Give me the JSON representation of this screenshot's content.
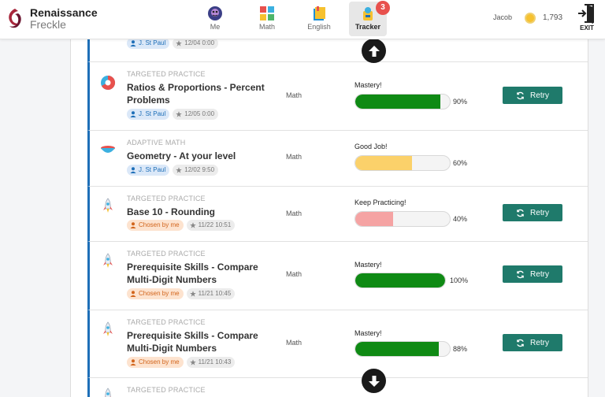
{
  "brand": {
    "line1": "Renaissance",
    "line2": "Freckle"
  },
  "nav": [
    {
      "label": "Me",
      "icon": "avatar-icon"
    },
    {
      "label": "Math",
      "icon": "math-blocks-icon"
    },
    {
      "label": "English",
      "icon": "book-icon"
    },
    {
      "label": "Tracker",
      "icon": "tracker-icon",
      "badge": "3",
      "active": true
    }
  ],
  "user": {
    "name": "Jacob",
    "coins": "1,793"
  },
  "exit_label": "EXIT",
  "partial_row": {
    "chips": [
      "J. St Paul",
      "12/04 0:00"
    ]
  },
  "rows": [
    {
      "type": "TARGETED PRACTICE",
      "title": "Ratios & Proportions - Percent Problems",
      "chip_kind": "teacher",
      "assigner": "J. St Paul",
      "date": "12/05 0:00",
      "subject": "Math",
      "status": "Mastery!",
      "progress": 90,
      "pct_label": "90%",
      "bar_color": "#0f8a14",
      "retry": "Retry",
      "icon": "pie-chart-icon"
    },
    {
      "type": "ADAPTIVE MATH",
      "title": "Geometry - At your level",
      "chip_kind": "teacher",
      "assigner": "J. St Paul",
      "date": "12/02 9:50",
      "subject": "Math",
      "status": "Good Job!",
      "progress": 60,
      "pct_label": "60%",
      "bar_color": "#fbd16a",
      "retry": "",
      "icon": "bowl-icon"
    },
    {
      "type": "TARGETED PRACTICE",
      "title": "Base 10 - Rounding",
      "chip_kind": "self",
      "assigner": "Chosen by me",
      "date": "11/22 10:51",
      "subject": "Math",
      "status": "Keep Practicing!",
      "progress": 40,
      "pct_label": "40%",
      "bar_color": "#f5a3a3",
      "retry": "Retry",
      "icon": "rocket-icon"
    },
    {
      "type": "TARGETED PRACTICE",
      "title": "Prerequisite Skills - Compare Multi-Digit Numbers",
      "chip_kind": "self",
      "assigner": "Chosen by me",
      "date": "11/21 10:45",
      "subject": "Math",
      "status": "Mastery!",
      "progress": 100,
      "pct_label": "100%",
      "bar_color": "#0f8a14",
      "retry": "Retry",
      "icon": "rocket-icon"
    },
    {
      "type": "TARGETED PRACTICE",
      "title": "Prerequisite Skills - Compare Multi-Digit Numbers",
      "chip_kind": "self",
      "assigner": "Chosen by me",
      "date": "11/21 10:43",
      "subject": "Math",
      "status": "Mastery!",
      "progress": 88,
      "pct_label": "88%",
      "bar_color": "#0f8a14",
      "retry": "Retry",
      "icon": "rocket-icon"
    },
    {
      "type": "TARGETED PRACTICE",
      "title": "",
      "chip_kind": "",
      "assigner": "",
      "date": "",
      "subject": "",
      "status": "",
      "progress": 0,
      "pct_label": "",
      "bar_color": "",
      "retry": "",
      "icon": "rocket-icon"
    }
  ],
  "colors": {
    "accent": "#1e6fb8",
    "retry": "#1f7a6b",
    "badge": "#e8514d"
  }
}
